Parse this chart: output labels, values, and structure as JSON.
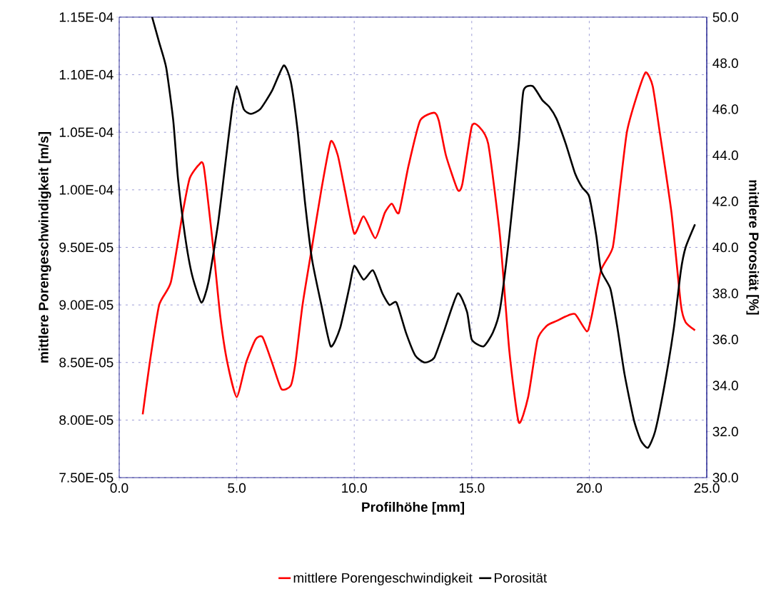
{
  "chart_data": {
    "type": "line",
    "xlabel": "Profilhöhe [mm]",
    "ylabel": "mittlere Porengeschwindigkeit [m/s]",
    "y2label": "mittlere Porosität [%]",
    "xlim": [
      0,
      25
    ],
    "xticks": [
      {
        "value": 0,
        "label": "0.0"
      },
      {
        "value": 5,
        "label": "5.0"
      },
      {
        "value": 10,
        "label": "10.0"
      },
      {
        "value": 15,
        "label": "15.0"
      },
      {
        "value": 20,
        "label": "20.0"
      },
      {
        "value": 25,
        "label": "25.0"
      }
    ],
    "ylim": [
      7.5e-05,
      0.000115
    ],
    "yticks": [
      {
        "value": 7.5e-05,
        "label": "7.50E-05"
      },
      {
        "value": 8e-05,
        "label": "8.00E-05"
      },
      {
        "value": 8.5e-05,
        "label": "8.50E-05"
      },
      {
        "value": 9e-05,
        "label": "9.00E-05"
      },
      {
        "value": 9.5e-05,
        "label": "9.50E-05"
      },
      {
        "value": 0.0001,
        "label": "1.00E-04"
      },
      {
        "value": 0.000105,
        "label": "1.05E-04"
      },
      {
        "value": 0.00011,
        "label": "1.10E-04"
      },
      {
        "value": 0.000115,
        "label": "1.15E-04"
      }
    ],
    "y2lim": [
      30,
      50
    ],
    "y2ticks": [
      {
        "value": 30,
        "label": "30.0"
      },
      {
        "value": 32,
        "label": "32.0"
      },
      {
        "value": 34,
        "label": "34.0"
      },
      {
        "value": 36,
        "label": "36.0"
      },
      {
        "value": 38,
        "label": "38.0"
      },
      {
        "value": 40,
        "label": "40.0"
      },
      {
        "value": 42,
        "label": "42.0"
      },
      {
        "value": 44,
        "label": "44.0"
      },
      {
        "value": 46,
        "label": "46.0"
      },
      {
        "value": 48,
        "label": "48.0"
      },
      {
        "value": 50,
        "label": "50.0"
      }
    ],
    "grid": true,
    "legend": "bottom",
    "marker": "none",
    "series": [
      {
        "name": "mittlere Porengeschwindigkeit",
        "color": "#ff0000",
        "x": [
          1.0,
          1.3,
          1.7,
          2.2,
          2.7,
          3.0,
          3.4,
          3.6,
          4.0,
          4.3,
          4.6,
          5.0,
          5.4,
          5.8,
          6.1,
          6.5,
          6.9,
          7.3,
          7.5,
          7.8,
          8.2,
          8.6,
          9.0,
          9.3,
          9.6,
          10.0,
          10.4,
          10.9,
          11.3,
          11.6,
          11.9,
          12.3,
          12.8,
          13.4,
          13.6,
          13.9,
          14.4,
          14.6,
          15.0,
          15.3,
          15.7,
          16.2,
          16.6,
          17.0,
          17.4,
          17.8,
          18.2,
          18.6,
          19.0,
          19.4,
          19.9,
          20.1,
          20.5,
          21.0,
          21.3,
          21.6,
          22.0,
          22.4,
          22.7,
          23.0,
          23.5,
          23.9,
          24.1,
          24.5
        ],
        "values": [
          8.05e-05,
          8.5e-05,
          9e-05,
          9.2e-05,
          9.8e-05,
          0.000101,
          0.0001022,
          0.000102,
          9.5e-05,
          8.9e-05,
          8.5e-05,
          8.2e-05,
          8.5e-05,
          8.7e-05,
          8.72e-05,
          8.5e-05,
          8.27e-05,
          8.3e-05,
          8.5e-05,
          9e-05,
          9.5e-05,
          0.0001,
          0.0001042,
          0.000103,
          0.0001,
          9.62e-05,
          9.77e-05,
          9.58e-05,
          9.8e-05,
          9.88e-05,
          9.8e-05,
          0.000102,
          0.000106,
          0.0001067,
          0.000106,
          0.000103,
          0.0001,
          0.0001005,
          0.0001055,
          0.0001055,
          0.000104,
          9.6e-05,
          8.6e-05,
          7.98e-05,
          8.2e-05,
          8.7e-05,
          8.82e-05,
          8.86e-05,
          8.9e-05,
          8.92e-05,
          8.77e-05,
          8.9e-05,
          9.3e-05,
          9.5e-05,
          0.0001,
          0.000105,
          0.000108,
          0.0001102,
          0.000109,
          0.000105,
          9.8e-05,
          9e-05,
          8.85e-05,
          8.78e-05
        ]
      },
      {
        "name": "Porosität",
        "color": "#000000",
        "axis": "y2",
        "x": [
          1.4,
          1.7,
          2.0,
          2.3,
          2.5,
          2.8,
          3.1,
          3.5,
          3.8,
          4.2,
          4.5,
          4.8,
          5.0,
          5.3,
          5.6,
          6.0,
          6.5,
          7.0,
          7.3,
          7.6,
          7.9,
          8.2,
          8.6,
          9.0,
          9.4,
          9.8,
          10.0,
          10.4,
          10.8,
          11.2,
          11.5,
          11.8,
          12.2,
          12.6,
          13.0,
          13.4,
          13.8,
          14.4,
          14.8,
          15.0,
          15.5,
          15.9,
          16.2,
          16.6,
          17.0,
          17.2,
          17.6,
          18.0,
          18.3,
          18.6,
          19.0,
          19.4,
          19.7,
          20.0,
          20.3,
          20.5,
          20.9,
          21.2,
          21.5,
          21.9,
          22.2,
          22.5,
          22.8,
          23.2,
          23.6,
          23.9,
          24.1,
          24.5
        ],
        "values": [
          50.0,
          48.9,
          47.8,
          45.5,
          43.0,
          40.5,
          38.8,
          37.6,
          38.5,
          41.0,
          43.5,
          46.0,
          47.0,
          46.0,
          45.8,
          46.0,
          46.8,
          47.9,
          47.2,
          45.0,
          42.0,
          39.5,
          37.5,
          35.7,
          36.5,
          38.3,
          39.2,
          38.6,
          39.0,
          38.0,
          37.5,
          37.6,
          36.3,
          35.3,
          35.0,
          35.2,
          36.3,
          38.0,
          37.2,
          36.0,
          35.7,
          36.3,
          37.3,
          40.5,
          44.5,
          46.8,
          47.0,
          46.4,
          46.1,
          45.6,
          44.5,
          43.2,
          42.6,
          42.2,
          40.5,
          39.0,
          38.2,
          36.5,
          34.5,
          32.5,
          31.6,
          31.3,
          32.0,
          34.0,
          36.5,
          39.0,
          40.0,
          41.0
        ]
      }
    ]
  }
}
